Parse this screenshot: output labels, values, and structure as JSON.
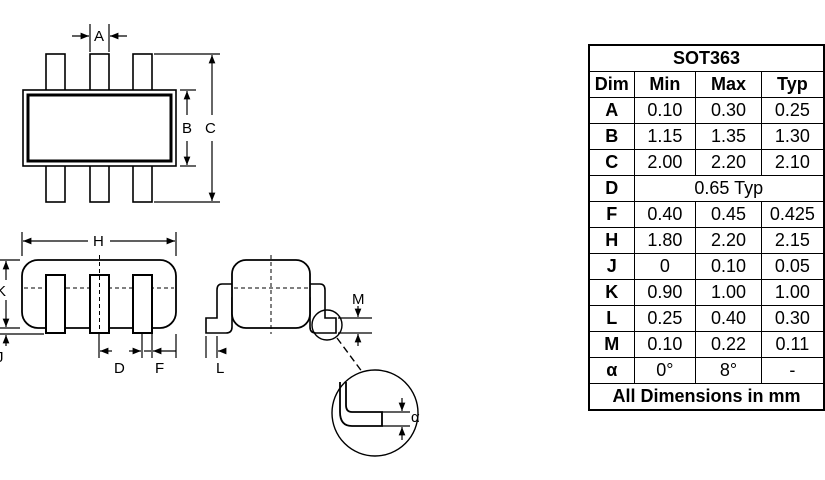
{
  "labels": {
    "A": "A",
    "B": "B",
    "C": "C",
    "H": "H",
    "K": "K",
    "J": "J",
    "D": "D",
    "F": "F",
    "L": "L",
    "M": "M",
    "alpha": "α"
  },
  "table": {
    "title": "SOT363",
    "headers": [
      "Dim",
      "Min",
      "Max",
      "Typ"
    ],
    "rows": [
      {
        "dim": "A",
        "min": "0.10",
        "max": "0.30",
        "typ": "0.25"
      },
      {
        "dim": "B",
        "min": "1.15",
        "max": "1.35",
        "typ": "1.30"
      },
      {
        "dim": "C",
        "min": "2.00",
        "max": "2.20",
        "typ": "2.10"
      },
      {
        "dim": "D",
        "span": "0.65 Typ"
      },
      {
        "dim": "F",
        "min": "0.40",
        "max": "0.45",
        "typ": "0.425"
      },
      {
        "dim": "H",
        "min": "1.80",
        "max": "2.20",
        "typ": "2.15"
      },
      {
        "dim": "J",
        "min": "0",
        "max": "0.10",
        "typ": "0.05"
      },
      {
        "dim": "K",
        "min": "0.90",
        "max": "1.00",
        "typ": "1.00"
      },
      {
        "dim": "L",
        "min": "0.25",
        "max": "0.40",
        "typ": "0.30"
      },
      {
        "dim": "M",
        "min": "0.10",
        "max": "0.22",
        "typ": "0.11"
      },
      {
        "dim": "α",
        "min": "0°",
        "max": "8°",
        "typ": "-"
      }
    ],
    "footer": "All Dimensions in mm"
  }
}
